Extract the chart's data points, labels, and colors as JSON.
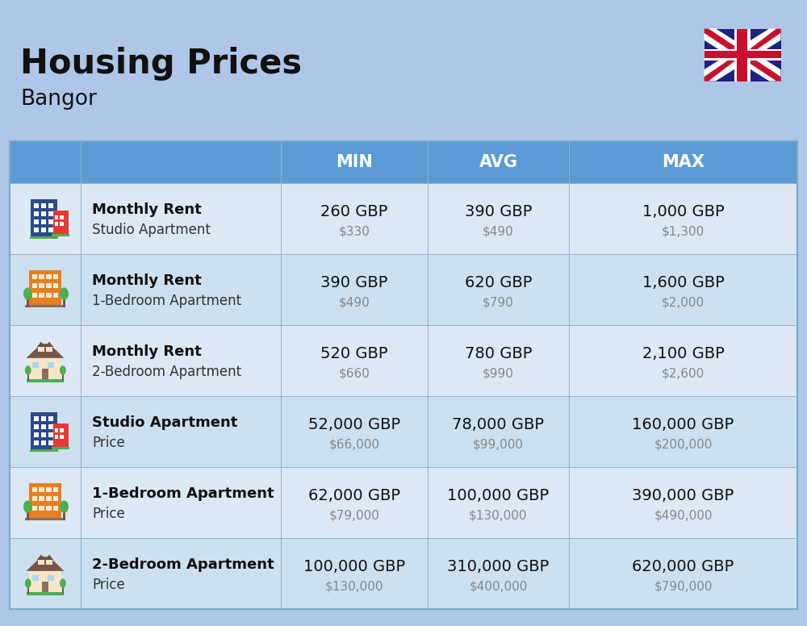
{
  "title": "Housing Prices",
  "subtitle": "Bangor",
  "background_color": "#aec6e8",
  "header_bg_color": "#5b9bd5",
  "header_text_color": "#ffffff",
  "col_headers": [
    "MIN",
    "AVG",
    "MAX"
  ],
  "rows": [
    {
      "bold_label": "Monthly Rent",
      "sub_label": "Studio Apartment",
      "icon_type": "studio_blue",
      "min_gbp": "260 GBP",
      "min_usd": "$330",
      "avg_gbp": "390 GBP",
      "avg_usd": "$490",
      "max_gbp": "1,000 GBP",
      "max_usd": "$1,300"
    },
    {
      "bold_label": "Monthly Rent",
      "sub_label": "1-Bedroom Apartment",
      "icon_type": "apartment_orange",
      "min_gbp": "390 GBP",
      "min_usd": "$490",
      "avg_gbp": "620 GBP",
      "avg_usd": "$790",
      "max_gbp": "1,600 GBP",
      "max_usd": "$2,000"
    },
    {
      "bold_label": "Monthly Rent",
      "sub_label": "2-Bedroom Apartment",
      "icon_type": "house_beige",
      "min_gbp": "520 GBP",
      "min_usd": "$660",
      "avg_gbp": "780 GBP",
      "avg_usd": "$990",
      "max_gbp": "2,100 GBP",
      "max_usd": "$2,600"
    },
    {
      "bold_label": "Studio Apartment",
      "sub_label": "Price",
      "icon_type": "studio_blue",
      "min_gbp": "52,000 GBP",
      "min_usd": "$66,000",
      "avg_gbp": "78,000 GBP",
      "avg_usd": "$99,000",
      "max_gbp": "160,000 GBP",
      "max_usd": "$200,000"
    },
    {
      "bold_label": "1-Bedroom Apartment",
      "sub_label": "Price",
      "icon_type": "apartment_orange",
      "min_gbp": "62,000 GBP",
      "min_usd": "$79,000",
      "avg_gbp": "100,000 GBP",
      "avg_usd": "$130,000",
      "max_gbp": "390,000 GBP",
      "max_usd": "$490,000"
    },
    {
      "bold_label": "2-Bedroom Apartment",
      "sub_label": "Price",
      "icon_type": "house_beige",
      "min_gbp": "100,000 GBP",
      "min_usd": "$130,000",
      "avg_gbp": "310,000 GBP",
      "avg_usd": "$400,000",
      "max_gbp": "620,000 GBP",
      "max_usd": "$790,000"
    }
  ],
  "title_fontsize": 30,
  "subtitle_fontsize": 19,
  "header_fontsize": 15,
  "cell_gbp_fontsize": 14,
  "cell_usd_fontsize": 11,
  "label_bold_fontsize": 13,
  "label_sub_fontsize": 12
}
